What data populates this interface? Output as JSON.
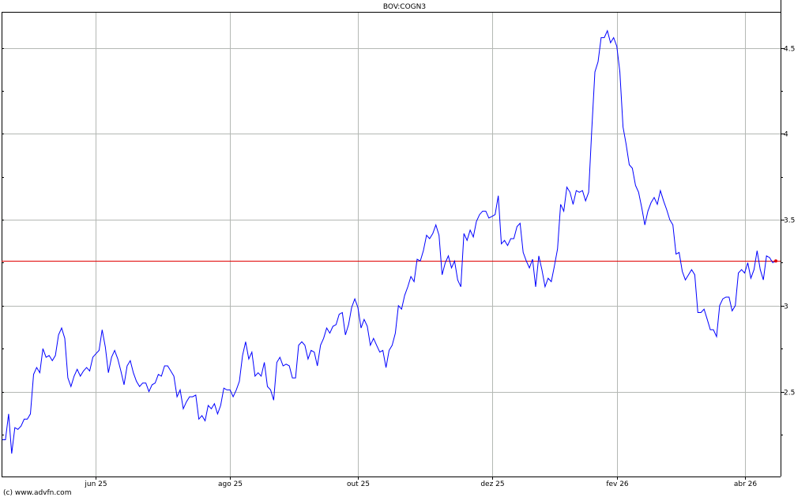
{
  "chart_data": {
    "type": "line",
    "title": "BOV:COGN3",
    "xlabel": "",
    "ylabel": "",
    "ylim": [
      2.006,
      4.71
    ],
    "grid": true,
    "y_ticks": [
      2.5,
      3,
      3.5,
      4,
      4.5
    ],
    "y_tick_labels": [
      "2.5",
      "3",
      "3.5",
      "4",
      "4.5"
    ],
    "y_minor_step": 0.25,
    "x_ticks": [
      {
        "label": "jun 25",
        "index": 30
      },
      {
        "label": "ago 25",
        "index": 73
      },
      {
        "label": "out 25",
        "index": 114
      },
      {
        "label": "dez 25",
        "index": 157
      },
      {
        "label": "fev 26",
        "index": 197
      },
      {
        "label": "abr 26",
        "index": 238
      }
    ],
    "reference_line": 3.26,
    "series": [
      {
        "color": "#0000ff",
        "values": [
          2.22,
          2.22,
          2.37,
          2.14,
          2.29,
          2.28,
          2.3,
          2.34,
          2.34,
          2.37,
          2.6,
          2.64,
          2.61,
          2.75,
          2.7,
          2.71,
          2.68,
          2.71,
          2.83,
          2.87,
          2.81,
          2.58,
          2.53,
          2.59,
          2.63,
          2.59,
          2.62,
          2.64,
          2.62,
          2.7,
          2.72,
          2.74,
          2.86,
          2.76,
          2.61,
          2.7,
          2.74,
          2.69,
          2.62,
          2.54,
          2.65,
          2.68,
          2.61,
          2.56,
          2.53,
          2.55,
          2.55,
          2.5,
          2.54,
          2.55,
          2.6,
          2.59,
          2.65,
          2.65,
          2.62,
          2.59,
          2.47,
          2.51,
          2.4,
          2.44,
          2.47,
          2.47,
          2.48,
          2.34,
          2.36,
          2.33,
          2.42,
          2.4,
          2.43,
          2.37,
          2.42,
          2.52,
          2.51,
          2.51,
          2.47,
          2.51,
          2.56,
          2.71,
          2.79,
          2.69,
          2.73,
          2.59,
          2.61,
          2.59,
          2.67,
          2.53,
          2.51,
          2.45,
          2.67,
          2.7,
          2.65,
          2.66,
          2.65,
          2.58,
          2.58,
          2.77,
          2.79,
          2.77,
          2.69,
          2.74,
          2.73,
          2.65,
          2.77,
          2.81,
          2.87,
          2.84,
          2.88,
          2.89,
          2.95,
          2.96,
          2.83,
          2.89,
          2.99,
          3.04,
          2.99,
          2.87,
          2.92,
          2.88,
          2.77,
          2.81,
          2.77,
          2.73,
          2.74,
          2.64,
          2.74,
          2.77,
          2.84,
          3.0,
          2.98,
          3.06,
          3.11,
          3.17,
          3.14,
          3.27,
          3.26,
          3.32,
          3.41,
          3.39,
          3.42,
          3.47,
          3.41,
          3.18,
          3.25,
          3.29,
          3.22,
          3.26,
          3.15,
          3.11,
          3.42,
          3.38,
          3.44,
          3.4,
          3.49,
          3.53,
          3.55,
          3.55,
          3.51,
          3.52,
          3.53,
          3.64,
          3.36,
          3.38,
          3.35,
          3.39,
          3.39,
          3.46,
          3.48,
          3.31,
          3.26,
          3.22,
          3.27,
          3.11,
          3.29,
          3.21,
          3.11,
          3.16,
          3.14,
          3.23,
          3.33,
          3.59,
          3.55,
          3.69,
          3.66,
          3.59,
          3.67,
          3.66,
          3.67,
          3.61,
          3.66,
          4.03,
          4.36,
          4.42,
          4.56,
          4.56,
          4.6,
          4.53,
          4.56,
          4.51,
          4.36,
          4.04,
          3.94,
          3.82,
          3.8,
          3.7,
          3.66,
          3.57,
          3.47,
          3.55,
          3.6,
          3.63,
          3.59,
          3.67,
          3.61,
          3.56,
          3.5,
          3.47,
          3.3,
          3.31,
          3.2,
          3.15,
          3.18,
          3.21,
          3.18,
          2.96,
          2.96,
          2.98,
          2.92,
          2.86,
          2.86,
          2.82,
          3.0,
          3.04,
          3.05,
          3.05,
          2.97,
          3.0,
          3.19,
          3.21,
          3.19,
          3.25,
          3.16,
          3.21,
          3.32,
          3.21,
          3.15,
          3.29,
          3.28,
          3.25,
          3.26
        ]
      }
    ],
    "colors": {
      "line": "#0000ff",
      "grid": "#b4b8b4",
      "reference": "#e00000",
      "last_point": "#e00000"
    }
  },
  "footer": {
    "copyright": "(c) www.advfn.com"
  }
}
